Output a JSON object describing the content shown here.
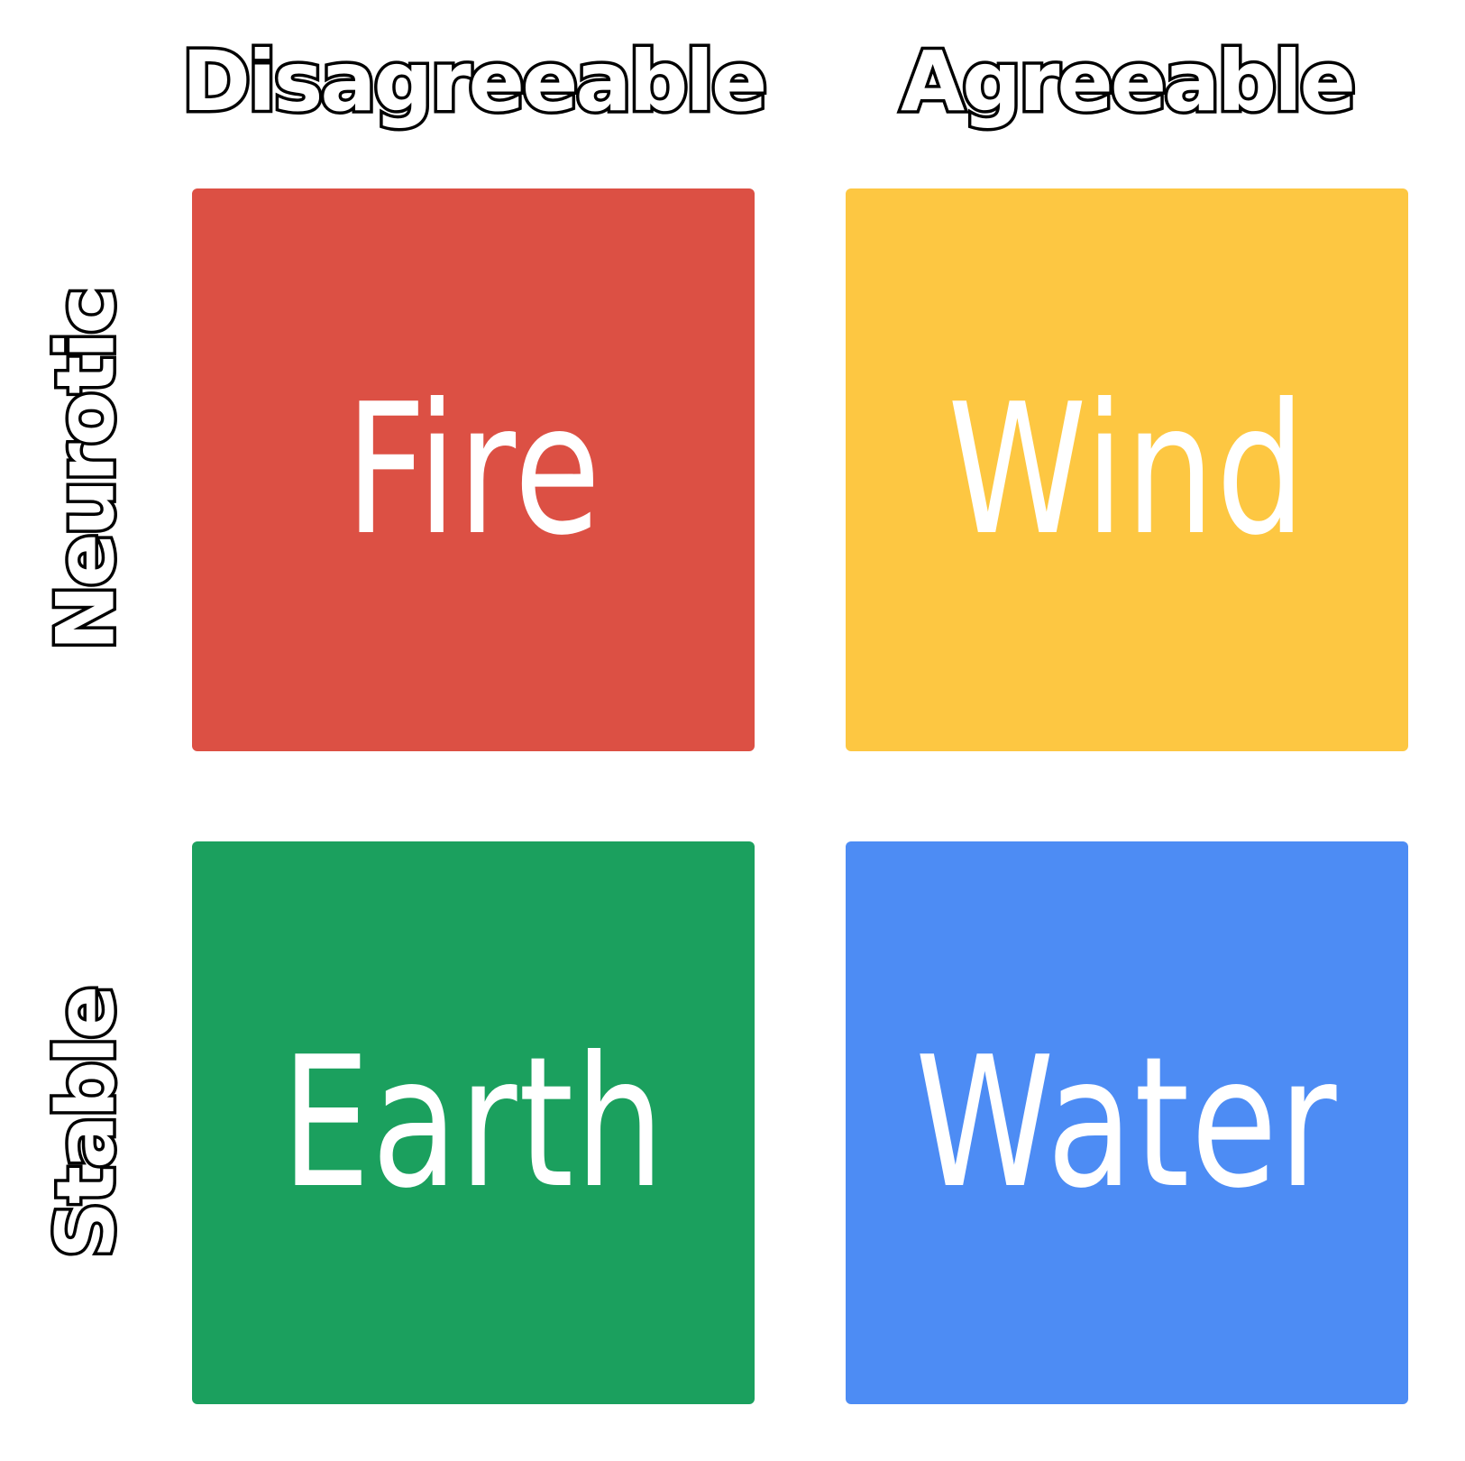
{
  "columns": [
    {
      "label": "Disagreeable"
    },
    {
      "label": "Agreeable"
    }
  ],
  "rows": [
    {
      "label": "Neurotic"
    },
    {
      "label": "Stable"
    }
  ],
  "quadrants": [
    {
      "label": "Fire",
      "color": "#dc5044"
    },
    {
      "label": "Wind",
      "color": "#fdc742"
    },
    {
      "label": "Earth",
      "color": "#1ba05e"
    },
    {
      "label": "Water",
      "color": "#4d8cf4"
    }
  ]
}
